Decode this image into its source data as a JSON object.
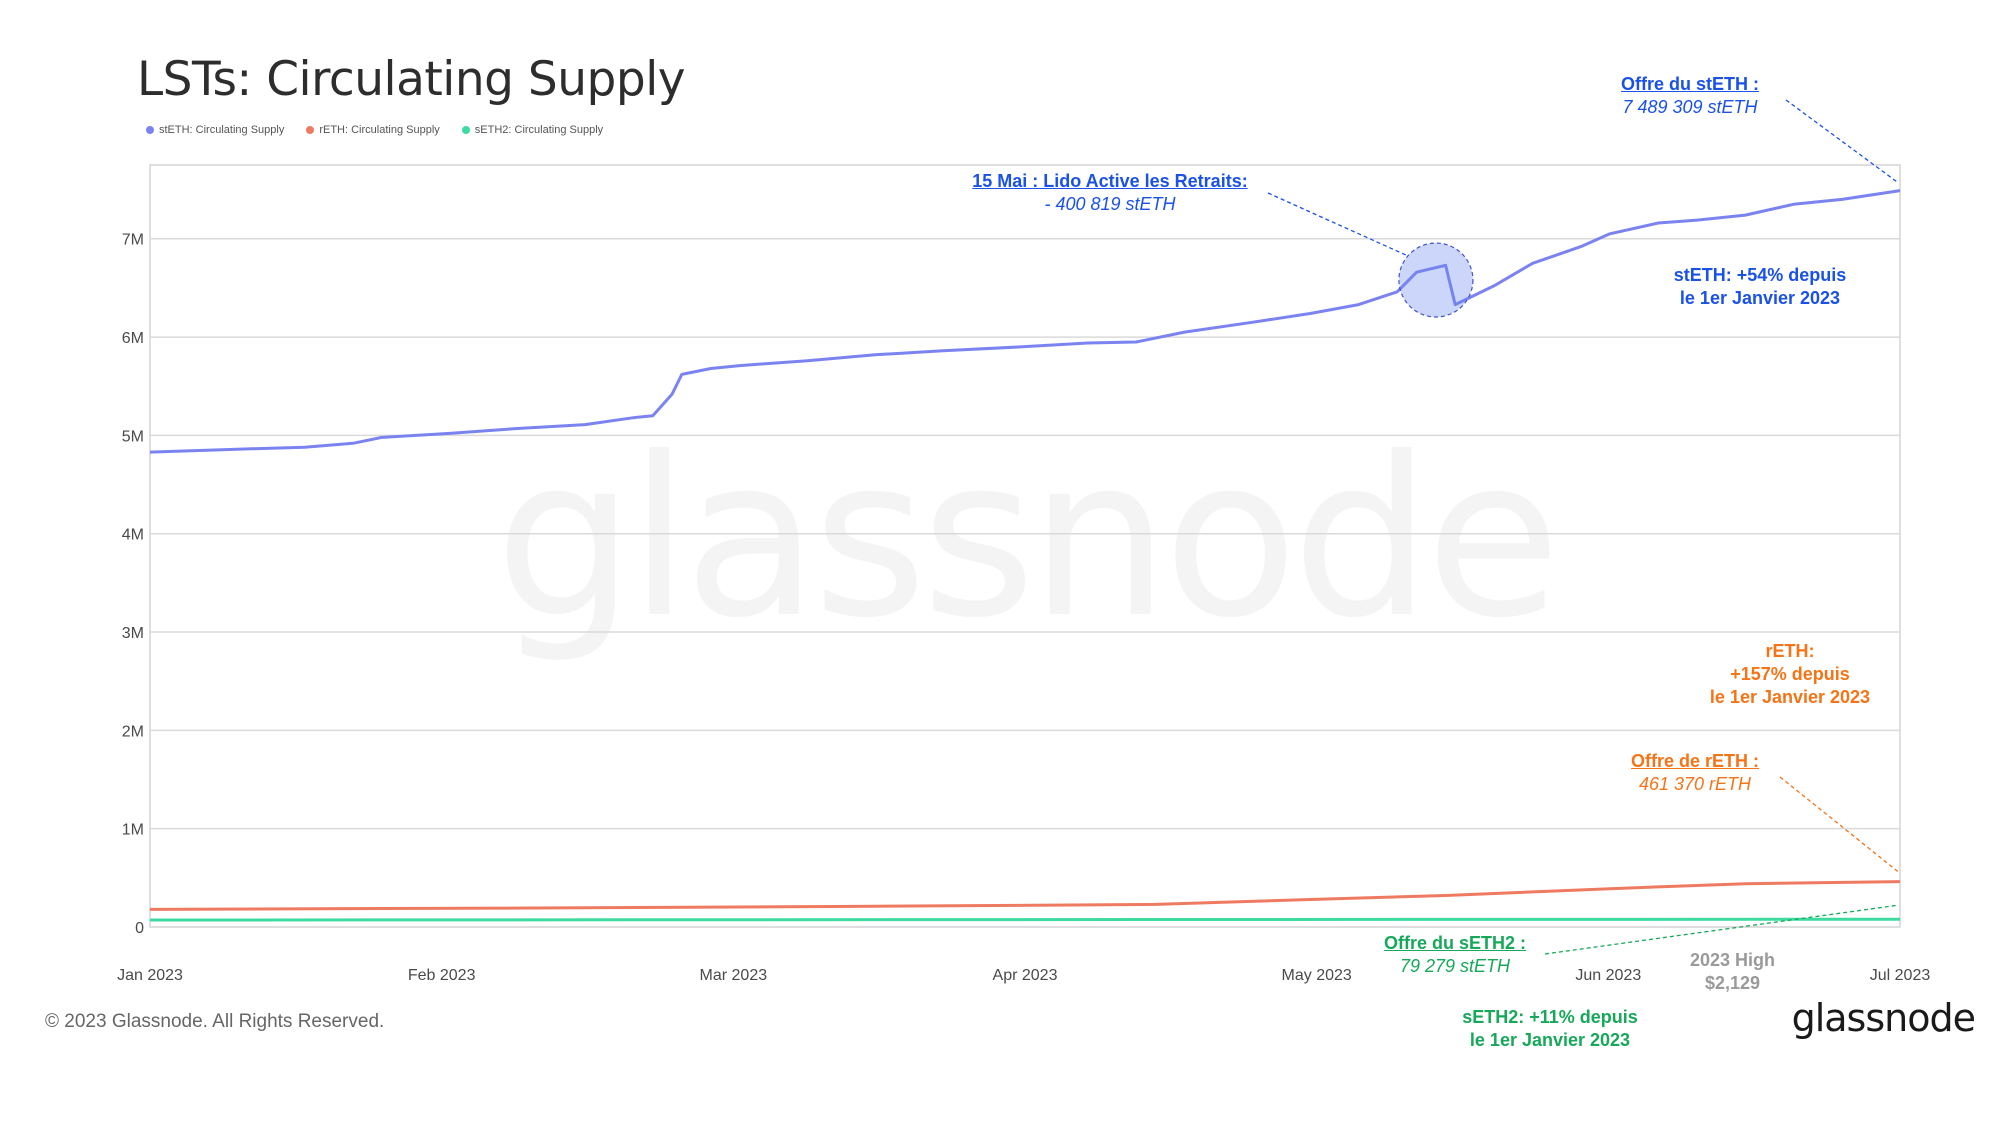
{
  "title": "LSTs: Circulating Supply",
  "legend": [
    {
      "label": "stETH: Circulating Supply",
      "color": "#7b83f0"
    },
    {
      "label": "rETH: Circulating Supply",
      "color": "#ee7a62"
    },
    {
      "label": "sETH2: Circulating Supply",
      "color": "#3ddba0"
    }
  ],
  "watermark": "glassnode",
  "chart_data": {
    "type": "line",
    "y_ticks": [
      "0",
      "1M",
      "2M",
      "3M",
      "4M",
      "5M",
      "6M",
      "7M"
    ],
    "x_ticks": [
      "Jan 2023",
      "Feb 2023",
      "Mar 2023",
      "Apr 2023",
      "May 2023",
      "Jun 2023",
      "Jul 2023"
    ],
    "ylim": [
      0,
      7750000
    ],
    "grid": true,
    "x_start": "2023-01-01",
    "x_end": "2023-07-01",
    "series": [
      {
        "name": "stETH: Circulating Supply",
        "color": "#7b83f0",
        "dates": [
          "2023-01-01",
          "2023-01-10",
          "2023-01-17",
          "2023-01-22",
          "2023-01-25",
          "2023-02-01",
          "2023-02-08",
          "2023-02-15",
          "2023-02-20",
          "2023-02-22",
          "2023-02-24",
          "2023-02-25",
          "2023-02-28",
          "2023-03-03",
          "2023-03-10",
          "2023-03-17",
          "2023-03-24",
          "2023-04-01",
          "2023-04-08",
          "2023-04-13",
          "2023-04-18",
          "2023-04-25",
          "2023-05-01",
          "2023-05-06",
          "2023-05-10",
          "2023-05-12",
          "2023-05-15",
          "2023-05-16",
          "2023-05-20",
          "2023-05-24",
          "2023-05-29",
          "2023-06-01",
          "2023-06-06",
          "2023-06-10",
          "2023-06-15",
          "2023-06-20",
          "2023-06-25",
          "2023-07-01"
        ],
        "values": [
          4830000,
          4860000,
          4880000,
          4920000,
          4980000,
          5020000,
          5070000,
          5110000,
          5180000,
          5200000,
          5420000,
          5620000,
          5680000,
          5710000,
          5760000,
          5820000,
          5860000,
          5900000,
          5940000,
          5950000,
          6050000,
          6150000,
          6240000,
          6330000,
          6460000,
          6660000,
          6730000,
          6330000,
          6520000,
          6750000,
          6920000,
          7050000,
          7160000,
          7190000,
          7240000,
          7350000,
          7400000,
          7489309
        ]
      },
      {
        "name": "rETH: Circulating Supply",
        "color": "#ee7a62",
        "dates": [
          "2023-01-01",
          "2023-02-15",
          "2023-03-15",
          "2023-04-15",
          "2023-05-01",
          "2023-05-15",
          "2023-06-01",
          "2023-06-15",
          "2023-07-01"
        ],
        "values": [
          179000,
          195000,
          210000,
          230000,
          280000,
          320000,
          390000,
          440000,
          461370
        ]
      },
      {
        "name": "sETH2: Circulating Supply",
        "color": "#3ddba0",
        "dates": [
          "2023-01-01",
          "2023-04-01",
          "2023-07-01"
        ],
        "values": [
          71400,
          75000,
          79279
        ]
      }
    ]
  },
  "annotations": {
    "lido": {
      "head": "15 Mai : Lido Active les Retraits:",
      "value": "- 400 819 stETH",
      "color": "#1a52e8"
    },
    "steth_supply": {
      "head": "Offre du stETH :",
      "value": "7 489 309 stETH",
      "color": "#1a52e8"
    },
    "steth_growth": {
      "line1": "stETH: +54% depuis",
      "line2": "le 1er Janvier 2023",
      "color": "#1a52e8"
    },
    "reth_growth": {
      "line1": "rETH:",
      "line2": "+157% depuis",
      "line3": "le 1er Janvier 2023",
      "color": "#f57417"
    },
    "reth_supply": {
      "head": "Offre de rETH :",
      "value": "461 370 rETH",
      "color": "#f57417"
    },
    "seth2_supply": {
      "head": "Offre du sETH2 :",
      "value": "79 279 stETH",
      "color": "#17a85a"
    },
    "seth2_growth": {
      "line1": "sETH2: +11% depuis",
      "line2": "le 1er Janvier 2023",
      "color": "#17a85a"
    },
    "high": {
      "line1": "2023 High",
      "line2": "$2,129"
    }
  },
  "footer": "© 2023 Glassnode. All Rights Reserved.",
  "brand": "glassnode"
}
